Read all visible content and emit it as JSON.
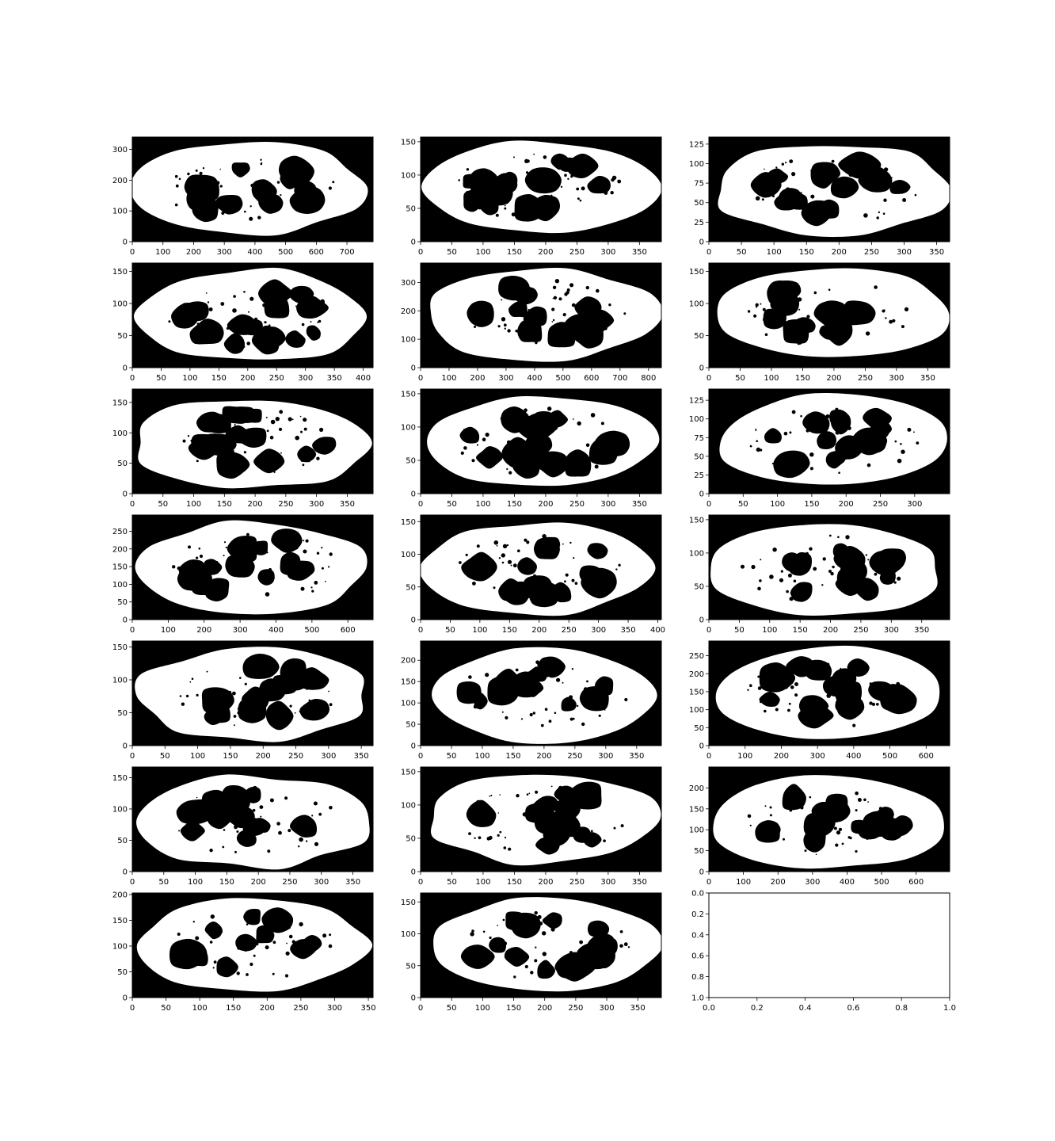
{
  "figure": {
    "background": "#ffffff",
    "spine_color": "#000000"
  },
  "chart_data": [
    {
      "type": "image",
      "image": "binary-mask",
      "xticks": [
        0,
        100,
        200,
        300,
        400,
        500,
        600,
        700
      ],
      "yticks": [
        0,
        100,
        200,
        300
      ],
      "xlim": [
        0,
        785
      ],
      "ylim": [
        340,
        0
      ]
    },
    {
      "type": "image",
      "image": "binary-mask",
      "xticks": [
        0,
        50,
        100,
        150,
        200,
        250,
        300,
        350
      ],
      "yticks": [
        0,
        50,
        100,
        150
      ],
      "xlim": [
        0,
        385
      ],
      "ylim": [
        157,
        0
      ]
    },
    {
      "type": "image",
      "image": "binary-mask",
      "xticks": [
        0,
        50,
        100,
        150,
        200,
        250,
        300,
        350
      ],
      "yticks": [
        0,
        25,
        50,
        75,
        100,
        125
      ],
      "xlim": [
        0,
        370
      ],
      "ylim": [
        134,
        0
      ]
    },
    {
      "type": "image",
      "image": "binary-mask",
      "xticks": [
        0,
        50,
        100,
        150,
        200,
        250,
        300,
        350,
        400
      ],
      "yticks": [
        0,
        50,
        100,
        150
      ],
      "xlim": [
        0,
        417
      ],
      "ylim": [
        163,
        0
      ]
    },
    {
      "type": "image",
      "image": "binary-mask",
      "xticks": [
        0,
        100,
        200,
        300,
        400,
        500,
        600,
        700,
        800
      ],
      "yticks": [
        0,
        100,
        200,
        300
      ],
      "xlim": [
        0,
        845
      ],
      "ylim": [
        368,
        0
      ]
    },
    {
      "type": "image",
      "image": "binary-mask",
      "xticks": [
        0,
        50,
        100,
        150,
        200,
        250,
        300,
        350
      ],
      "yticks": [
        0,
        50,
        100,
        150
      ],
      "xlim": [
        0,
        385
      ],
      "ylim": [
        163,
        0
      ]
    },
    {
      "type": "image",
      "image": "binary-mask",
      "xticks": [
        0,
        50,
        100,
        150,
        200,
        250,
        300,
        350
      ],
      "yticks": [
        0,
        50,
        100,
        150
      ],
      "xlim": [
        0,
        392
      ],
      "ylim": [
        172,
        0
      ]
    },
    {
      "type": "image",
      "image": "binary-mask",
      "xticks": [
        0,
        50,
        100,
        150,
        200,
        250,
        300,
        350
      ],
      "yticks": [
        0,
        50,
        100,
        150
      ],
      "xlim": [
        0,
        385
      ],
      "ylim": [
        157,
        0
      ]
    },
    {
      "type": "image",
      "image": "binary-mask",
      "xticks": [
        0,
        50,
        100,
        150,
        200,
        250,
        300
      ],
      "yticks": [
        0,
        25,
        50,
        75,
        100,
        125
      ],
      "xlim": [
        0,
        351
      ],
      "ylim": [
        140,
        0
      ]
    },
    {
      "type": "image",
      "image": "binary-mask",
      "xticks": [
        0,
        100,
        200,
        300,
        400,
        500,
        600
      ],
      "yticks": [
        0,
        50,
        100,
        150,
        200,
        250
      ],
      "xlim": [
        0,
        670
      ],
      "ylim": [
        296,
        0
      ]
    },
    {
      "type": "image",
      "image": "binary-mask",
      "xticks": [
        0,
        50,
        100,
        150,
        200,
        250,
        300,
        350,
        400
      ],
      "yticks": [
        0,
        50,
        100,
        150
      ],
      "xlim": [
        0,
        406
      ],
      "ylim": [
        160,
        0
      ]
    },
    {
      "type": "image",
      "image": "binary-mask",
      "xticks": [
        0,
        50,
        100,
        150,
        200,
        250,
        300,
        350
      ],
      "yticks": [
        0,
        50,
        100,
        150
      ],
      "xlim": [
        0,
        396
      ],
      "ylim": [
        157,
        0
      ]
    },
    {
      "type": "image",
      "image": "binary-mask",
      "xticks": [
        0,
        50,
        100,
        150,
        200,
        250,
        300,
        350
      ],
      "yticks": [
        0,
        50,
        100,
        150
      ],
      "xlim": [
        0,
        368
      ],
      "ylim": [
        159,
        0
      ]
    },
    {
      "type": "image",
      "image": "binary-mask",
      "xticks": [
        0,
        50,
        100,
        150,
        200,
        250,
        300,
        350
      ],
      "yticks": [
        0,
        50,
        100,
        150,
        200
      ],
      "xlim": [
        0,
        390
      ],
      "ylim": [
        245,
        0
      ]
    },
    {
      "type": "image",
      "image": "binary-mask",
      "xticks": [
        0,
        100,
        200,
        300,
        400,
        500,
        600
      ],
      "yticks": [
        0,
        50,
        100,
        150,
        200,
        250
      ],
      "xlim": [
        0,
        665
      ],
      "ylim": [
        291,
        0
      ]
    },
    {
      "type": "image",
      "image": "binary-mask",
      "xticks": [
        0,
        50,
        100,
        150,
        200,
        250,
        300,
        350
      ],
      "yticks": [
        0,
        50,
        100,
        150
      ],
      "xlim": [
        0,
        382
      ],
      "ylim": [
        167,
        0
      ]
    },
    {
      "type": "image",
      "image": "binary-mask",
      "xticks": [
        0,
        50,
        100,
        150,
        200,
        250,
        300,
        350
      ],
      "yticks": [
        0,
        50,
        100,
        150
      ],
      "xlim": [
        0,
        385
      ],
      "ylim": [
        157,
        0
      ]
    },
    {
      "type": "image",
      "image": "binary-mask",
      "xticks": [
        0,
        100,
        200,
        300,
        400,
        500,
        600
      ],
      "yticks": [
        0,
        50,
        100,
        150,
        200
      ],
      "xlim": [
        0,
        697
      ],
      "ylim": [
        250,
        0
      ]
    },
    {
      "type": "image",
      "image": "binary-mask",
      "xticks": [
        0,
        50,
        100,
        150,
        200,
        250,
        300,
        350
      ],
      "yticks": [
        0,
        50,
        100,
        150,
        200
      ],
      "xlim": [
        0,
        357
      ],
      "ylim": [
        203,
        0
      ]
    },
    {
      "type": "image",
      "image": "binary-mask",
      "xticks": [
        0,
        50,
        100,
        150,
        200,
        250,
        300,
        350
      ],
      "yticks": [
        0,
        50,
        100,
        150
      ],
      "xlim": [
        0,
        388
      ],
      "ylim": [
        164,
        0
      ]
    },
    {
      "type": "empty",
      "xticks": [
        "0.0",
        "0.2",
        "0.4",
        "0.6",
        "0.8",
        "1.0"
      ],
      "yticks": [
        "0.0",
        "0.2",
        "0.4",
        "0.6",
        "0.8",
        "1.0"
      ],
      "xlim": [
        0,
        1
      ],
      "ylim": [
        0,
        1
      ]
    }
  ]
}
